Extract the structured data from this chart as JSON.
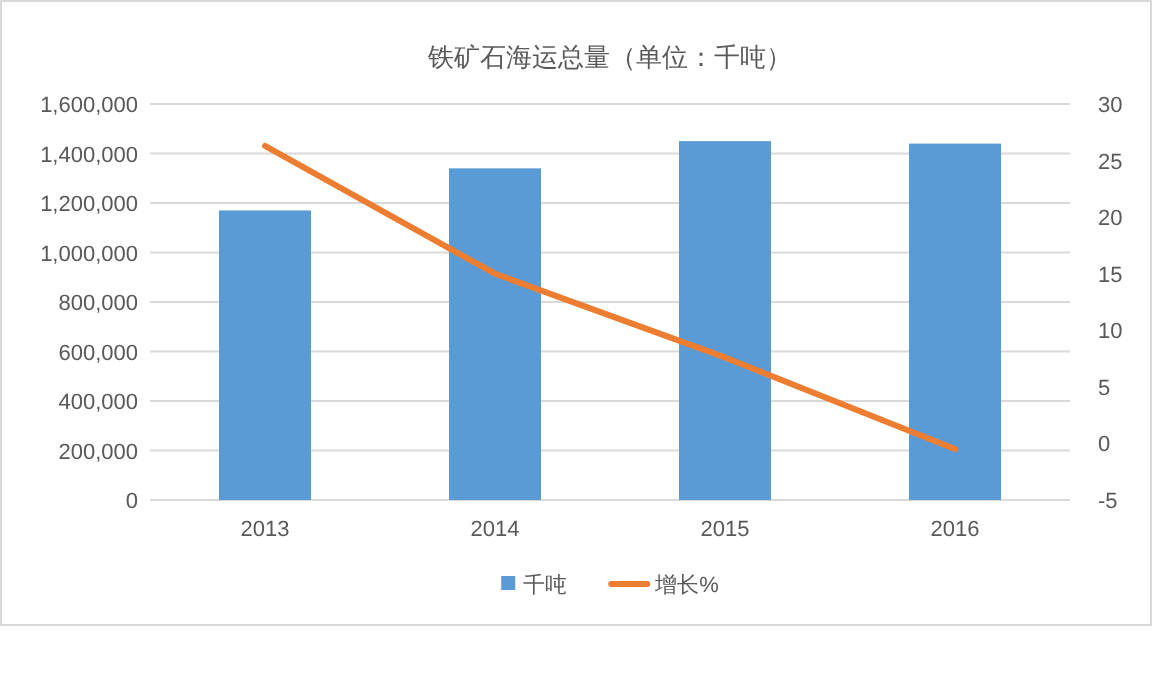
{
  "chart_data": {
    "type": "bar",
    "title": "铁矿石海运总量（单位：千吨）",
    "categories": [
      "2013",
      "2014",
      "2015",
      "2016"
    ],
    "series": [
      {
        "name": "千吨",
        "color": "#5b9bd5",
        "values": [
          1170000,
          1340000,
          1450000,
          1440000
        ]
      },
      {
        "name": "增长%",
        "type": "line",
        "axis": "y2",
        "color": "#ed7d31",
        "values": [
          26.3,
          15.0,
          7.6,
          -0.5
        ]
      }
    ],
    "ylim": [
      0,
      1600000
    ],
    "yticks": [
      {
        "value": 0,
        "label": "0"
      },
      {
        "value": 200000,
        "label": "200,000"
      },
      {
        "value": 400000,
        "label": "400,000"
      },
      {
        "value": 600000,
        "label": "600,000"
      },
      {
        "value": 800000,
        "label": "800,000"
      },
      {
        "value": 1000000,
        "label": "1,000,000"
      },
      {
        "value": 1200000,
        "label": "1,200,000"
      },
      {
        "value": 1400000,
        "label": "1,400,000"
      },
      {
        "value": 1600000,
        "label": "1,600,000"
      }
    ],
    "y2lim": [
      -5,
      30
    ],
    "y2ticks": [
      -5,
      0,
      5,
      10,
      15,
      20,
      25,
      30
    ],
    "grid": "y",
    "legend": "bottom",
    "marker": "none"
  }
}
